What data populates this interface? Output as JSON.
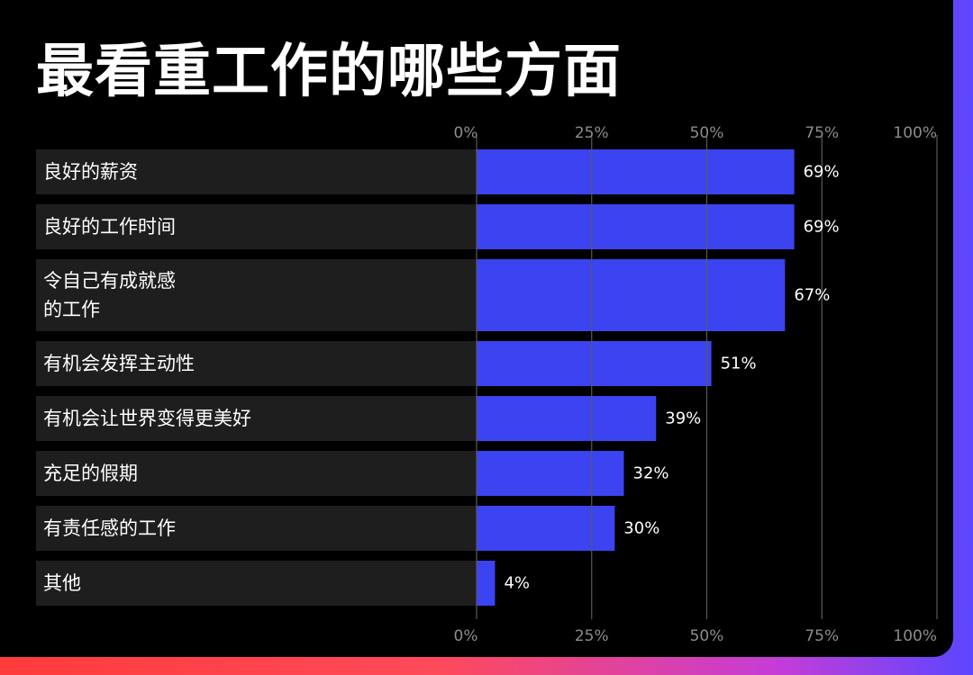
{
  "colors": {
    "background": "#000000",
    "row_background": "#1e1e1e",
    "bar": "#3b44f0",
    "grid": "#5a5a5a",
    "tick_text": "#8c8c8c",
    "text": "#ffffff"
  },
  "chart_data": {
    "type": "bar",
    "orientation": "horizontal",
    "title": "最看重工作的哪些方面",
    "categories": [
      [
        "良好的薪资"
      ],
      [
        "良好的工作时间"
      ],
      [
        "令自己有成就感",
        "的工作"
      ],
      [
        "有机会发挥主动性"
      ],
      [
        "有机会让世界变得更美好"
      ],
      [
        "充足的假期"
      ],
      [
        "有责任感的工作"
      ],
      [
        "其他"
      ]
    ],
    "values": [
      69,
      69,
      67,
      51,
      39,
      32,
      30,
      4
    ],
    "value_labels": [
      "69%",
      "69%",
      "67%",
      "51%",
      "39%",
      "32%",
      "30%",
      "4%"
    ],
    "xlim": [
      0,
      100
    ],
    "ticks": [
      0,
      25,
      50,
      75,
      100
    ],
    "tick_labels": [
      "0%",
      "25%",
      "50%",
      "75%",
      "100%"
    ],
    "tick_label_positions": [
      "top",
      "bottom"
    ],
    "grid": true,
    "legend": false
  }
}
